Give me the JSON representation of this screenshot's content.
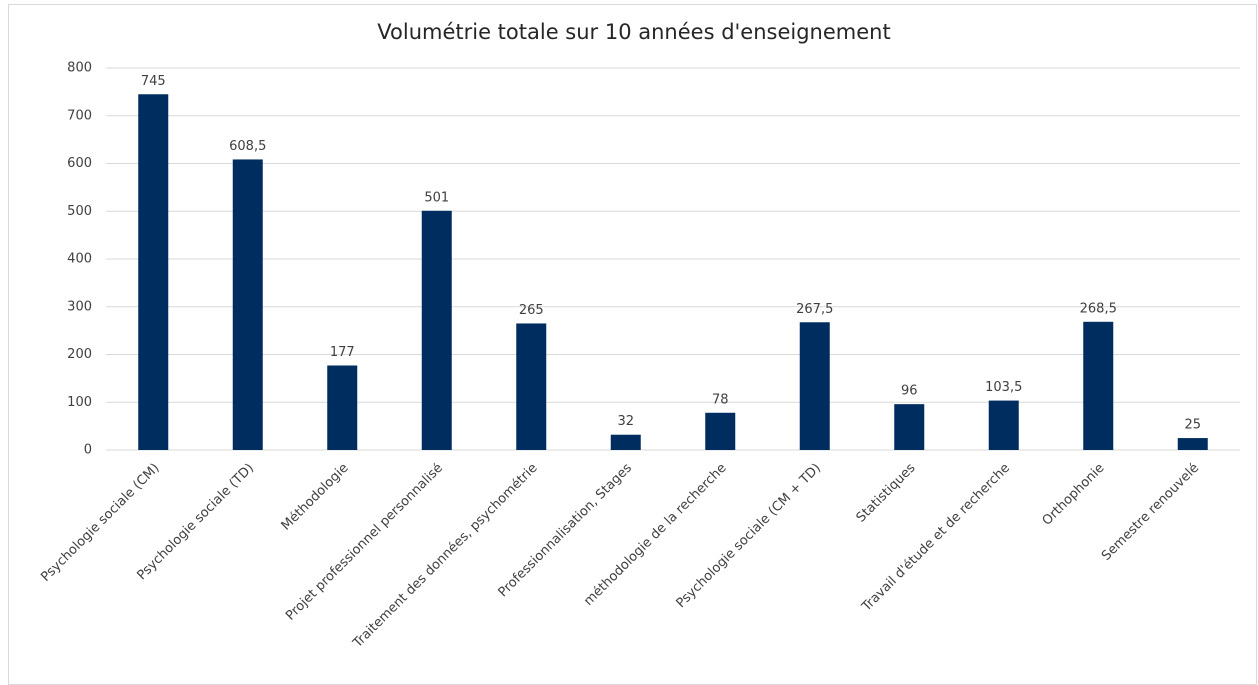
{
  "chart_data": {
    "type": "bar",
    "title": "Volumétrie totale  sur 10 années d'enseignement",
    "categories": [
      "Psychologie sociale (CM)",
      "Psychologie sociale (TD)",
      "Méthodologie",
      "Projet professionnel personnalisé",
      "Traitement des données, psychométrie",
      "Professionnalisation, Stages",
      "méthodologie de la recherche",
      "Psychologie sociale (CM + TD)",
      "Statistiques",
      "Travail d'étude et de recherche",
      "Orthophonie",
      "Semestre renouvelé"
    ],
    "values": [
      745,
      608.5,
      177,
      501,
      265,
      32,
      78,
      267.5,
      96,
      103.5,
      268.5,
      25
    ],
    "value_labels": [
      "745",
      "608,5",
      "177",
      "501",
      "265",
      "32",
      "78",
      "267,5",
      "96",
      "103,5",
      "268,5",
      "25"
    ],
    "color": "#002d5f",
    "ylim": [
      0,
      800
    ],
    "yticks": [
      0,
      100,
      200,
      300,
      400,
      500,
      600,
      700,
      800
    ],
    "grid": true
  }
}
